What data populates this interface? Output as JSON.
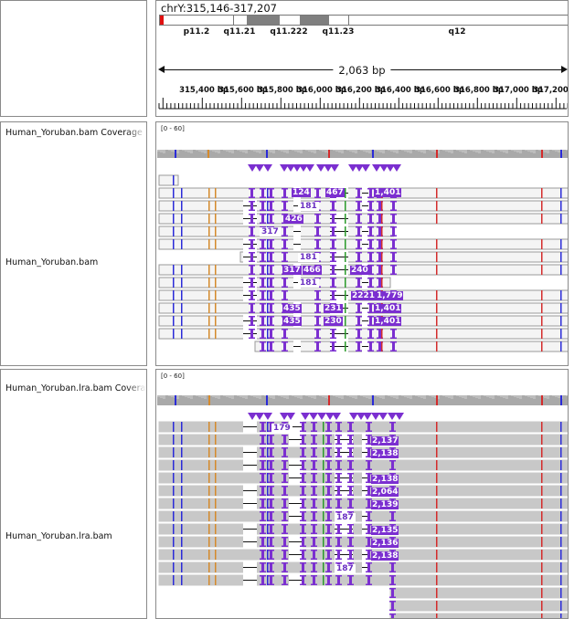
{
  "locus": {
    "label": "chrY:315,146-317,207"
  },
  "ideogram": {
    "bands": [
      "p11.2",
      "q11.21",
      "q11.222",
      "q11.23",
      "q12"
    ]
  },
  "ruler": {
    "span_label": "2,063 bp",
    "ticks": [
      "315,400 bp",
      "315,600 bp",
      "315,800 bp",
      "316,000 bp",
      "316,200 bp",
      "316,400 bp",
      "316,600 bp",
      "316,800 bp",
      "317,000 bp",
      "317,200 bp"
    ]
  },
  "tracks": [
    {
      "coverage_name": "Human_Yoruban.bam Coverage",
      "range": "[0 - 60]",
      "alignment_name": "Human_Yoruban.bam",
      "insertion_counts": [
        "124",
        "467",
        "1,401",
        "181",
        "426",
        "317",
        "181",
        "317",
        "466",
        "240",
        "181",
        "2221",
        "1,779",
        "435",
        "231",
        "1,401",
        "435",
        "230",
        "1,401"
      ]
    },
    {
      "coverage_name": "Human_Yoruban.lra.bam Coverage",
      "range": "[0 - 60]",
      "alignment_name": "Human_Yoruban.lra.bam",
      "insertion_counts": [
        "179",
        "2,137",
        "2,138",
        "2,138",
        "2,064",
        "2,139",
        "187",
        "2,135",
        "2,136",
        "2,138",
        "187"
      ]
    }
  ],
  "colors": {
    "insertion": "#7b2fd0",
    "read": "#c8c8c8",
    "read_outline": "#9a9a9a",
    "mm_a": "#2b2bd8",
    "mm_g": "#d58a2c",
    "mm_t": "#d42c2c",
    "mm_c": "#2a9a2a"
  }
}
